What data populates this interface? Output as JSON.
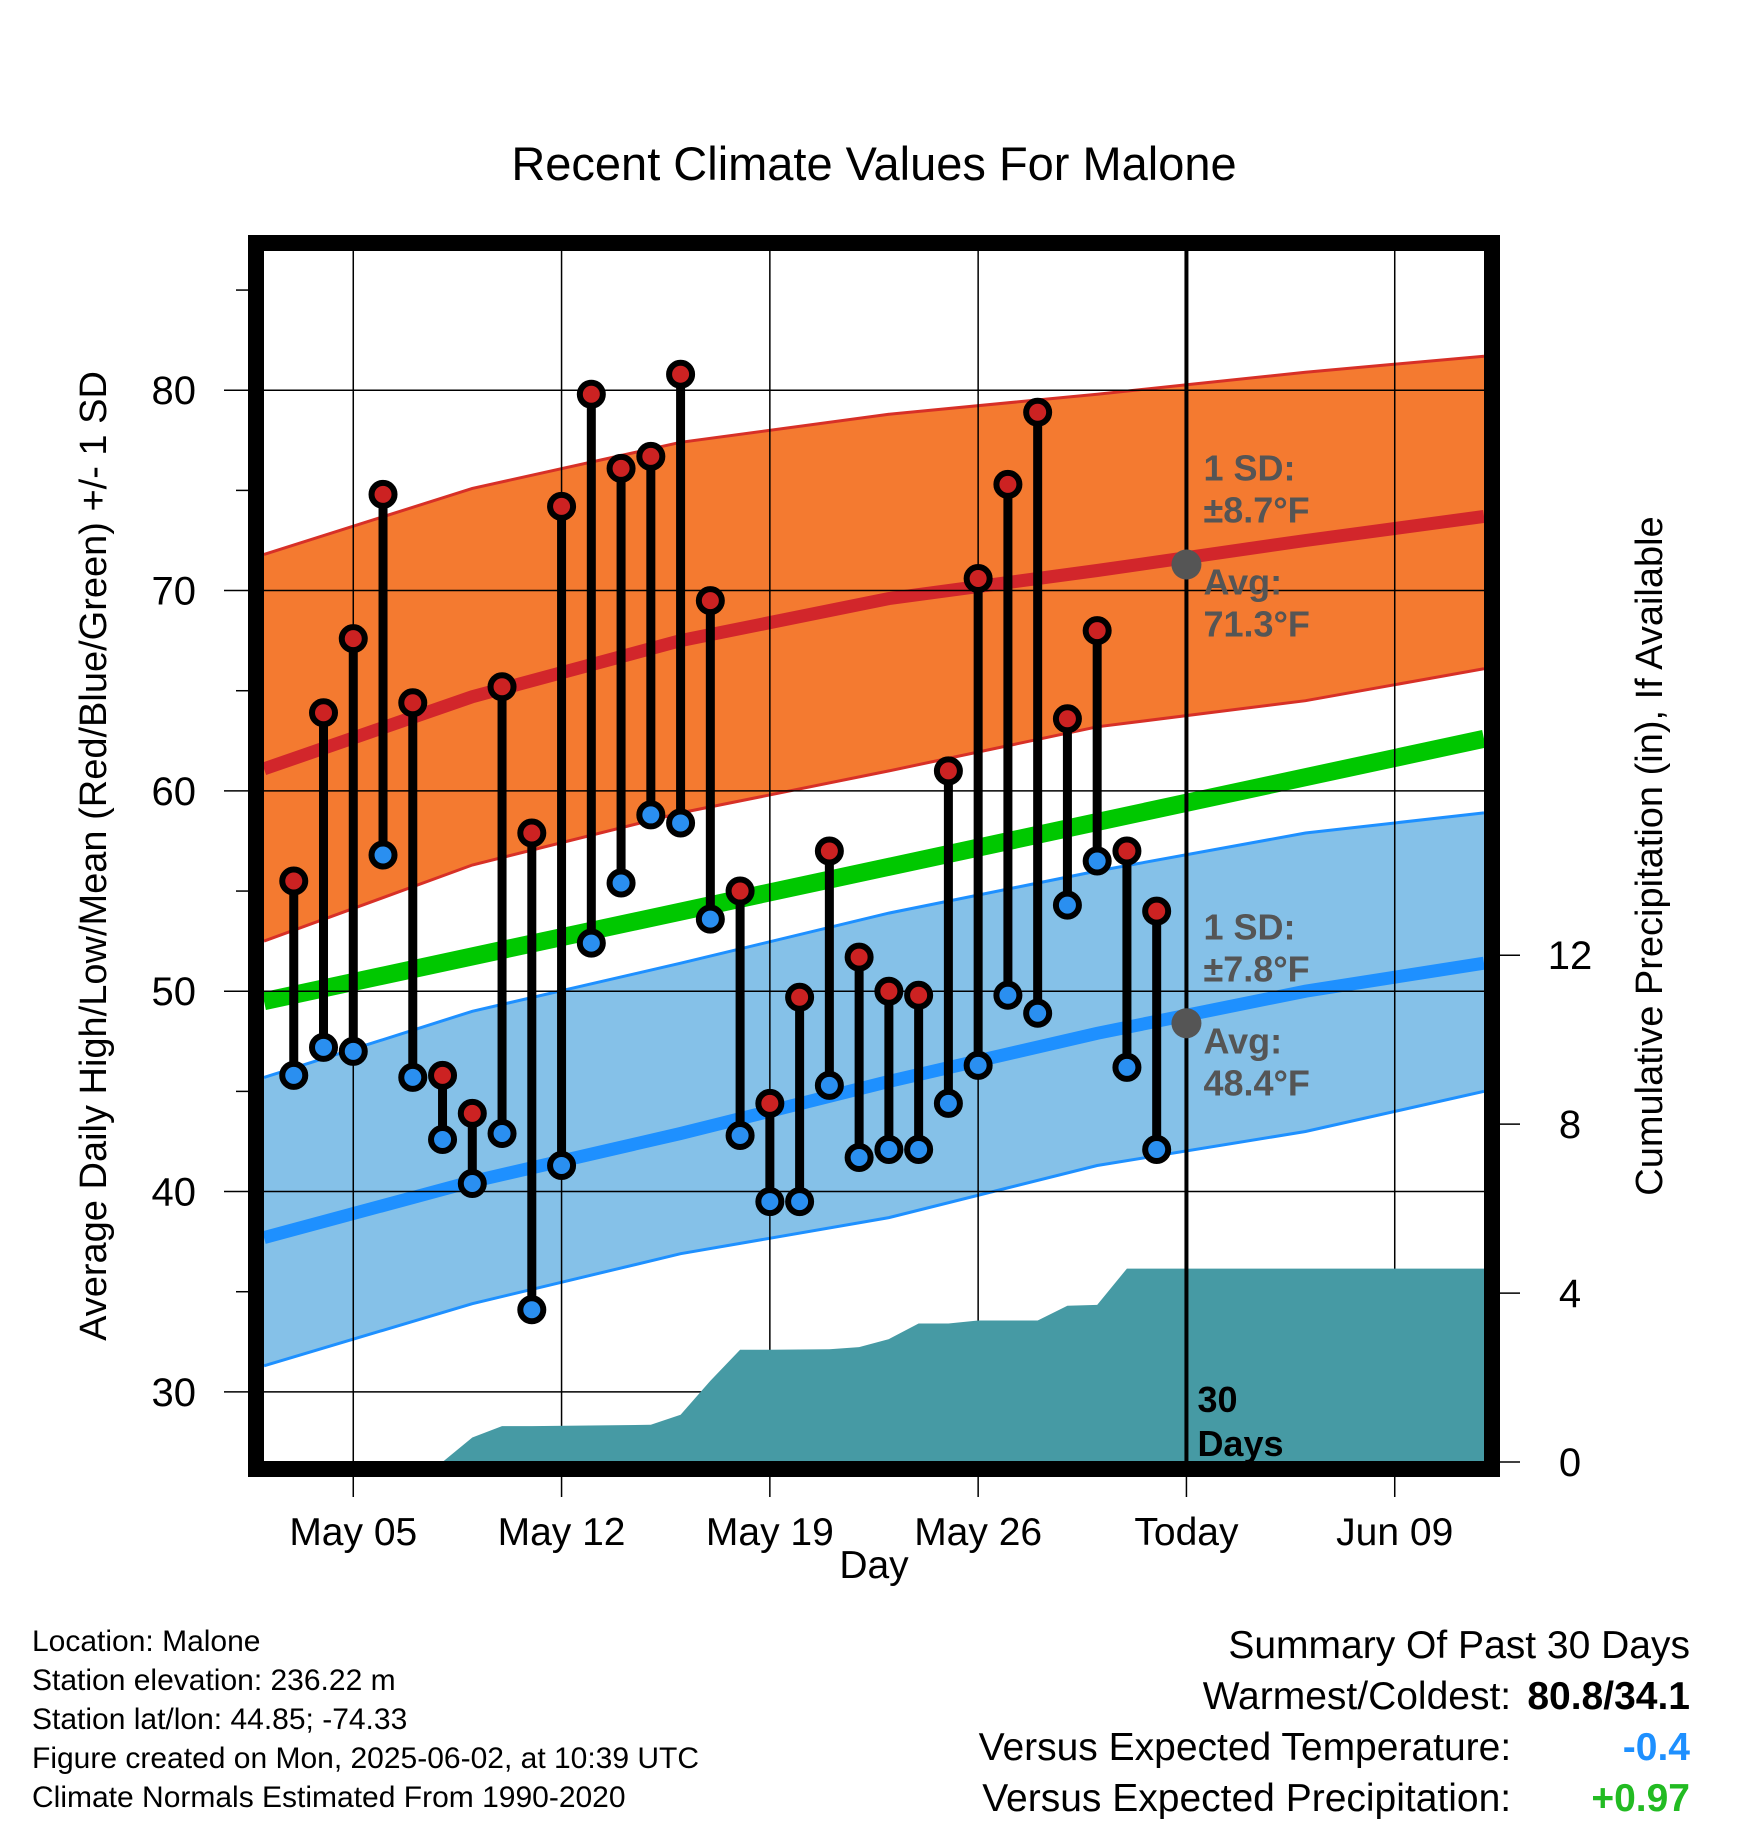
{
  "chart_data": {
    "type": "line",
    "title": "Recent Climate Values For Malone",
    "xlabel": "Day",
    "ylabel": "Average Daily High/Low/Mean (Red/Blue/Green) +/- 1 SD",
    "ylabel_right": "Cumulative Precipitation (in), If Available",
    "x_ticks": [
      "May 05",
      "May 12",
      "May 19",
      "May 26",
      "Today",
      "Jun 09"
    ],
    "y_ticks": [
      30,
      40,
      50,
      60,
      70,
      80
    ],
    "y_ticks_right": [
      0,
      4,
      8,
      12
    ],
    "ylim": [
      26.5,
      87
    ],
    "ylim_right": [
      0,
      28.7
    ],
    "grid": true,
    "days": [
      "2025-05-03",
      "2025-05-04",
      "2025-05-05",
      "2025-05-06",
      "2025-05-07",
      "2025-05-08",
      "2025-05-09",
      "2025-05-10",
      "2025-05-11",
      "2025-05-12",
      "2025-05-13",
      "2025-05-14",
      "2025-05-15",
      "2025-05-16",
      "2025-05-17",
      "2025-05-18",
      "2025-05-19",
      "2025-05-20",
      "2025-05-21",
      "2025-05-22",
      "2025-05-23",
      "2025-05-24",
      "2025-05-25",
      "2025-05-26",
      "2025-05-27",
      "2025-05-28",
      "2025-05-29",
      "2025-05-30",
      "2025-05-31",
      "2025-06-01"
    ],
    "highs": [
      55.5,
      63.9,
      67.6,
      74.8,
      64.4,
      45.8,
      43.9,
      65.2,
      57.9,
      74.2,
      79.8,
      76.1,
      76.7,
      80.8,
      69.5,
      55.0,
      44.4,
      49.7,
      57.0,
      51.7,
      50.0,
      49.8,
      61.0,
      70.6,
      75.3,
      78.9,
      63.6,
      68.0,
      57.0,
      54.0
    ],
    "lows": [
      45.8,
      47.2,
      47.0,
      56.8,
      45.7,
      42.6,
      40.4,
      42.9,
      34.1,
      41.3,
      52.4,
      55.4,
      58.8,
      58.4,
      53.6,
      42.8,
      39.5,
      39.5,
      45.3,
      41.7,
      42.1,
      42.1,
      44.4,
      46.3,
      49.8,
      48.9,
      54.3,
      56.5,
      46.2,
      42.1
    ],
    "normal_high": {
      "x": [
        "2025-05-02",
        "2025-05-09",
        "2025-05-16",
        "2025-05-23",
        "2025-05-30",
        "2025-06-06",
        "2025-06-12"
      ],
      "mean": [
        61.1,
        64.7,
        67.5,
        69.6,
        71.0,
        72.5,
        73.7
      ],
      "upper": [
        71.8,
        75.1,
        77.4,
        78.8,
        79.8,
        80.9,
        81.7
      ],
      "lower": [
        52.5,
        56.3,
        58.9,
        61.0,
        63.2,
        64.5,
        66.1
      ]
    },
    "normal_low": {
      "x": [
        "2025-05-02",
        "2025-05-09",
        "2025-05-16",
        "2025-05-23",
        "2025-05-30",
        "2025-06-06",
        "2025-06-12"
      ],
      "mean": [
        37.7,
        40.5,
        42.9,
        45.5,
        47.9,
        50.0,
        51.4
      ],
      "upper": [
        45.7,
        49.0,
        51.4,
        53.9,
        56.0,
        57.9,
        58.9
      ],
      "lower": [
        31.3,
        34.4,
        36.9,
        38.7,
        41.3,
        43.0,
        45.0
      ]
    },
    "normal_mean": {
      "x": [
        "2025-05-02",
        "2025-06-12"
      ],
      "values": [
        49.5,
        62.6
      ]
    },
    "precip_cumulative": {
      "x": [
        "2025-05-02",
        "2025-05-08",
        "2025-05-09",
        "2025-05-10",
        "2025-05-11",
        "2025-05-15",
        "2025-05-16",
        "2025-05-17",
        "2025-05-18",
        "2025-05-19",
        "2025-05-21",
        "2025-05-22",
        "2025-05-23",
        "2025-05-24",
        "2025-05-25",
        "2025-05-26",
        "2025-05-28",
        "2025-05-29",
        "2025-05-30",
        "2025-05-31",
        "2025-06-12"
      ],
      "values": [
        0,
        0,
        0.58,
        0.85,
        0.85,
        0.88,
        1.12,
        1.92,
        2.66,
        2.66,
        2.67,
        2.72,
        2.91,
        3.28,
        3.28,
        3.35,
        3.35,
        3.7,
        3.72,
        4.58,
        4.58
      ]
    },
    "reference_points": [
      {
        "x": "2025-06-02",
        "y": 71.3,
        "label": "Avg:",
        "value": "71.3°F",
        "sd_label": "1 SD:",
        "sd_value": "±8.7°F"
      },
      {
        "x": "2025-06-02",
        "y": 48.4,
        "label": "Avg:",
        "value": "48.4°F",
        "sd_label": "1 SD:",
        "sd_value": "±7.8°F"
      }
    ],
    "today_marker": {
      "x": "2025-06-02",
      "label_line1": "30",
      "label_line2": "Days"
    },
    "colors": {
      "high_band": "#f47a30",
      "high_edge": "#d73027",
      "high_mean": "#d2262b",
      "low_band": "#85c1e8",
      "low_edge": "#1e90ff",
      "low_mean": "#1e90ff",
      "normal_mean": "#00c800",
      "precip": "#469aa4",
      "high_marker": "#cc2222",
      "low_marker": "#2a8ff0",
      "reference_point": "#555555",
      "annotation_text": "#555555"
    }
  },
  "info": {
    "location": "Location: Malone",
    "elevation": "Station elevation: 236.22 m",
    "latlon": "Station lat/lon: 44.85; -74.33",
    "created": "Figure created on Mon, 2025-06-02, at 10:39 UTC",
    "normals": "Climate Normals Estimated From 1990-2020"
  },
  "summary": {
    "title": "Summary Of Past 30 Days",
    "warmest_label": "Warmest/Coldest:",
    "warmest_value": "80.8/34.1",
    "temp_label": "Versus Expected Temperature:",
    "temp_value": "-0.4",
    "temp_color": "#1e90ff",
    "precip_label": "Versus Expected Precipitation:",
    "precip_value": "+0.97",
    "precip_color": "#22bb22"
  }
}
